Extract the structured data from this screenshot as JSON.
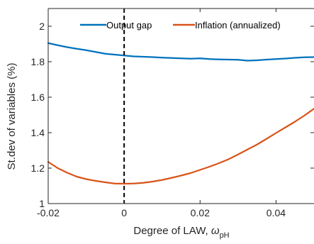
{
  "chart_data": {
    "type": "line",
    "xlabel_main": "Degree of LAW, ",
    "xlabel_symbol": "ω",
    "xlabel_sub": "pH",
    "ylabel": "St.dev of variables (%)",
    "xlim": [
      -0.02,
      0.05
    ],
    "ylim": [
      1.0,
      2.1
    ],
    "xticks": [
      -0.02,
      0,
      0.02,
      0.04
    ],
    "xtick_labels": [
      "-0.02",
      "0",
      "0.02",
      "0.04"
    ],
    "yticks": [
      1.0,
      1.2,
      1.4,
      1.6,
      1.8,
      2.0
    ],
    "ytick_labels": [
      "1",
      "1.2",
      "1.4",
      "1.6",
      "1.8",
      "2"
    ],
    "vline_x": 0,
    "legend_position": "top",
    "series": [
      {
        "name": "Output gap",
        "color": "#0072BD",
        "x": [
          -0.02,
          -0.0175,
          -0.015,
          -0.0125,
          -0.01,
          -0.0075,
          -0.005,
          -0.0025,
          0,
          0.0025,
          0.005,
          0.0075,
          0.01,
          0.0125,
          0.015,
          0.0175,
          0.02,
          0.0225,
          0.025,
          0.0275,
          0.03,
          0.0325,
          0.035,
          0.0375,
          0.04,
          0.0425,
          0.045,
          0.0475,
          0.05
        ],
        "y": [
          1.905,
          1.893,
          1.882,
          1.873,
          1.865,
          1.855,
          1.845,
          1.84,
          1.835,
          1.83,
          1.828,
          1.826,
          1.823,
          1.821,
          1.819,
          1.817,
          1.819,
          1.815,
          1.813,
          1.812,
          1.811,
          1.806,
          1.808,
          1.812,
          1.815,
          1.818,
          1.822,
          1.825,
          1.826
        ]
      },
      {
        "name": "Inflation (annualized)",
        "color": "#D95319",
        "x": [
          -0.02,
          -0.0175,
          -0.015,
          -0.0125,
          -0.01,
          -0.0075,
          -0.005,
          -0.0025,
          0,
          0.0025,
          0.005,
          0.0075,
          0.01,
          0.0125,
          0.015,
          0.0175,
          0.02,
          0.0225,
          0.025,
          0.0275,
          0.03,
          0.0325,
          0.035,
          0.0375,
          0.04,
          0.0425,
          0.045,
          0.0475,
          0.05
        ],
        "y": [
          1.235,
          1.2,
          1.174,
          1.152,
          1.138,
          1.128,
          1.12,
          1.113,
          1.112,
          1.113,
          1.117,
          1.124,
          1.133,
          1.145,
          1.158,
          1.172,
          1.19,
          1.208,
          1.228,
          1.25,
          1.277,
          1.305,
          1.333,
          1.365,
          1.398,
          1.43,
          1.462,
          1.497,
          1.535
        ]
      }
    ]
  }
}
